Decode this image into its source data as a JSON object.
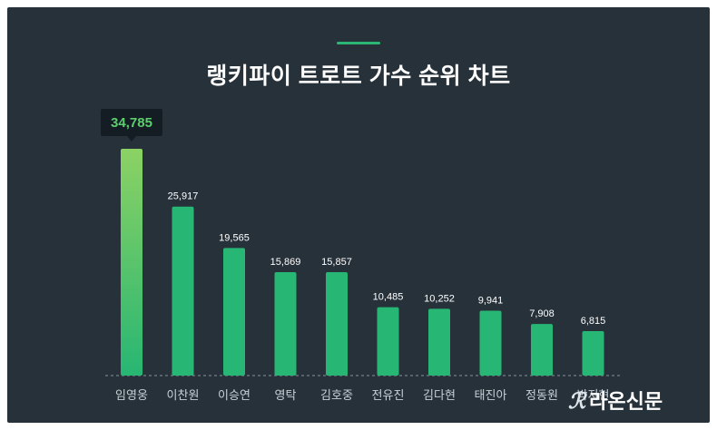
{
  "title": "랭키파이 트로트 가수 순위 차트",
  "watermark": "라온신문",
  "colors": {
    "background": "#27313a",
    "accent": "#2bb673",
    "bar": "#27b673",
    "top_bar_gradient_start": "#8cd264",
    "top_bar_gradient_end": "#27b673",
    "tooltip_bg": "#151d24",
    "tooltip_text": "#5ccf6d"
  },
  "chart_data": {
    "type": "bar",
    "title": "랭키파이 트로트 가수 순위 차트",
    "categories": [
      "임영웅",
      "이찬원",
      "이승연",
      "영탁",
      "김호중",
      "전유진",
      "김다현",
      "태진아",
      "정동원",
      "박지현"
    ],
    "values": [
      34785,
      25917,
      19565,
      15869,
      15857,
      10485,
      10252,
      9941,
      7908,
      6815
    ],
    "value_labels": [
      "34,785",
      "25,917",
      "19,565",
      "15,869",
      "15,857",
      "10,485",
      "10,252",
      "9,941",
      "7,908",
      "6,815"
    ],
    "highlight_index": 0,
    "ylim": [
      0,
      34785
    ],
    "grid": false,
    "baseline": "dashed"
  }
}
